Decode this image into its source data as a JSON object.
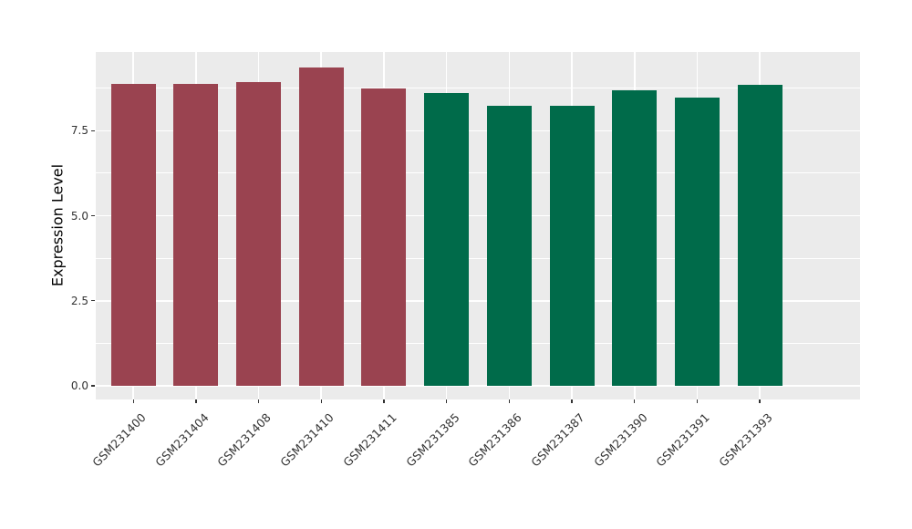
{
  "chart_data": {
    "type": "bar",
    "title": "",
    "xlabel": "",
    "ylabel": "Expression Level",
    "categories": [
      "GSM231400",
      "GSM231404",
      "GSM231408",
      "GSM231410",
      "GSM231411",
      "GSM231385",
      "GSM231386",
      "GSM231387",
      "GSM231390",
      "GSM231391",
      "GSM231393"
    ],
    "values": [
      8.88,
      8.88,
      8.93,
      9.36,
      8.75,
      8.62,
      8.24,
      8.24,
      8.68,
      8.47,
      8.86
    ],
    "bar_colors": [
      "#9A4350",
      "#9A4350",
      "#9A4350",
      "#9A4350",
      "#9A4350",
      "#006B4A",
      "#006B4A",
      "#006B4A",
      "#006B4A",
      "#006B4A",
      "#006B4A"
    ],
    "group_colors": {
      "left_group": "#9A4350",
      "right_group": "#006B4A"
    },
    "ylim": [
      -0.47,
      9.84
    ],
    "yticks": [
      0,
      2.5,
      5,
      7.5
    ],
    "ytick_labels": [
      "0.0",
      "2.5",
      "5.0",
      "7.5"
    ],
    "yminor_ticks": [
      1.25,
      3.75,
      6.25,
      8.75
    ],
    "grid": true,
    "legend": "none",
    "panel_bg": "#EBEBEB",
    "grid_color": "#FFFFFF",
    "bar_width_ratio": 0.71
  }
}
